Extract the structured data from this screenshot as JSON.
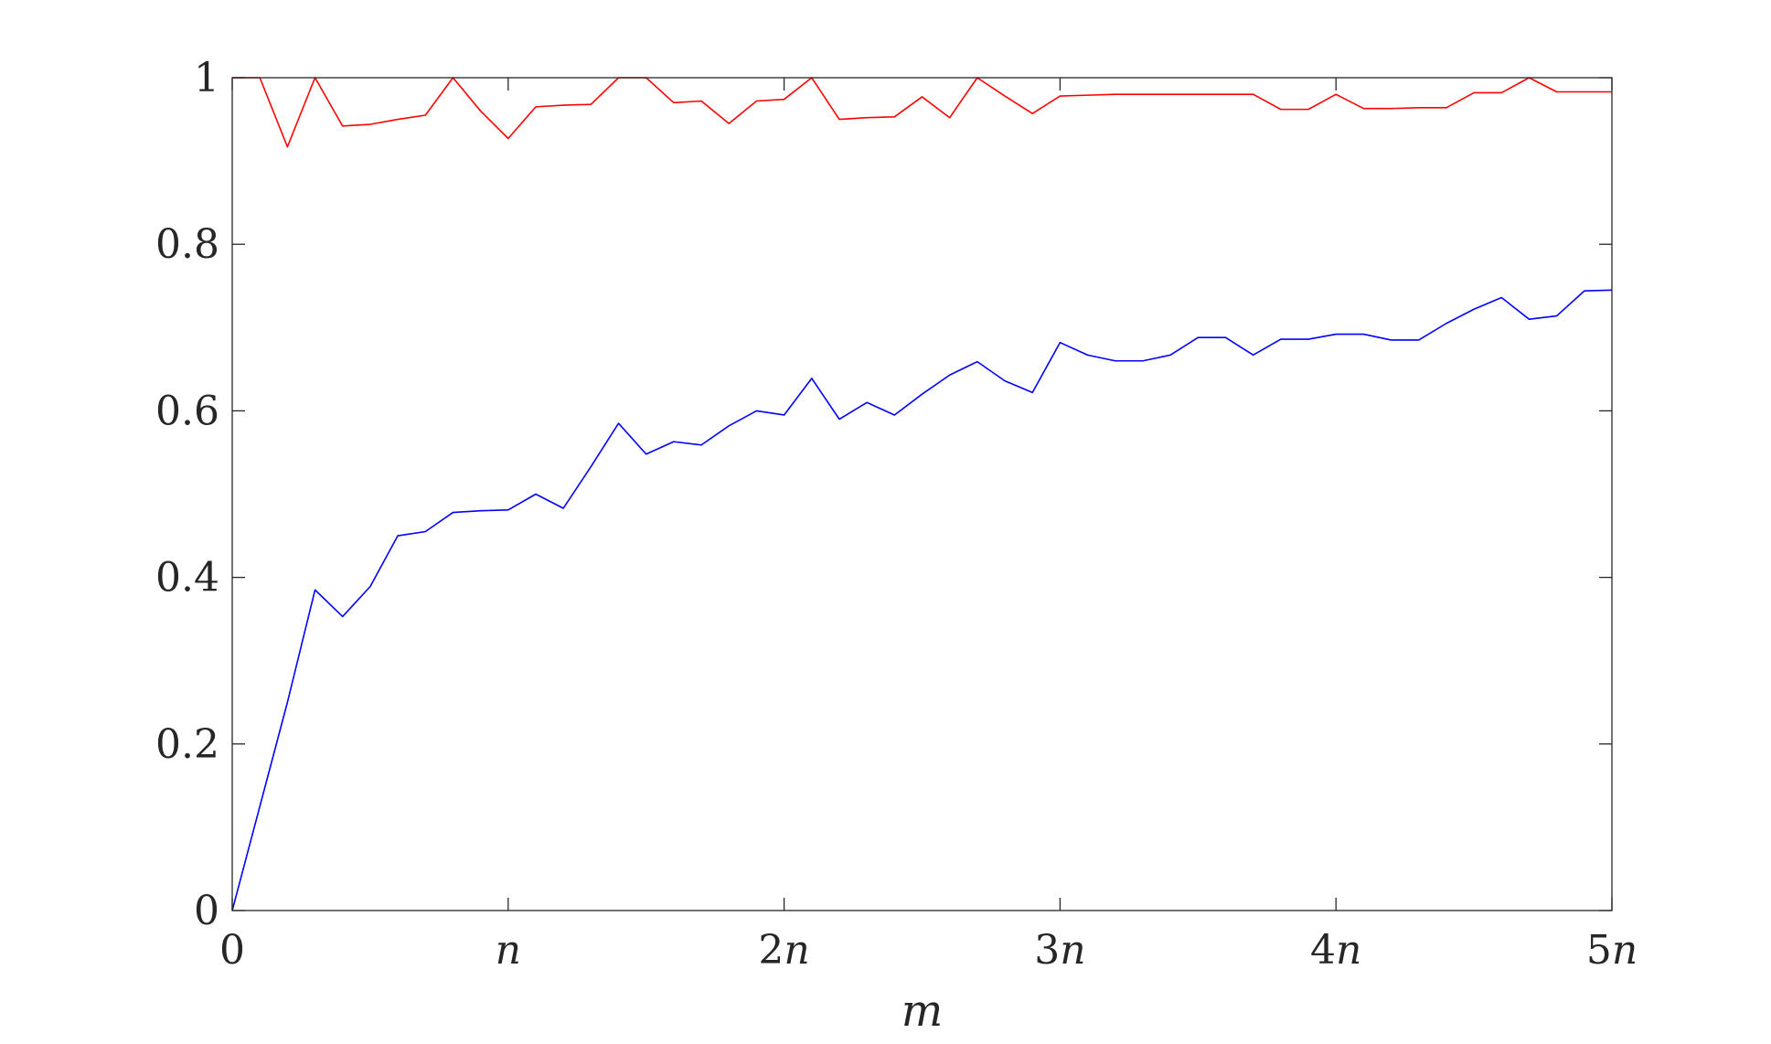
{
  "chart_data": {
    "type": "line",
    "title": "",
    "xlabel": "m",
    "ylabel": "",
    "xlim": [
      0,
      5
    ],
    "ylim": [
      0,
      1
    ],
    "x_unit": "n",
    "x_ticks": [
      {
        "value": 0,
        "label": "0"
      },
      {
        "value": 1,
        "label": "n"
      },
      {
        "value": 2,
        "label": "2n"
      },
      {
        "value": 3,
        "label": "3n"
      },
      {
        "value": 4,
        "label": "4n"
      },
      {
        "value": 5,
        "label": "5n"
      }
    ],
    "y_ticks": [
      {
        "value": 0,
        "label": "0"
      },
      {
        "value": 0.2,
        "label": "0.2"
      },
      {
        "value": 0.4,
        "label": "0.4"
      },
      {
        "value": 0.6,
        "label": "0.6"
      },
      {
        "value": 0.8,
        "label": "0.8"
      },
      {
        "value": 1,
        "label": "1"
      }
    ],
    "grid": false,
    "box": true,
    "x": [
      0,
      0.1,
      0.2,
      0.3,
      0.4,
      0.5,
      0.6,
      0.7,
      0.8,
      0.9,
      1.0,
      1.1,
      1.2,
      1.3,
      1.4,
      1.5,
      1.6,
      1.7,
      1.8,
      1.9,
      2.0,
      2.1,
      2.2,
      2.3,
      2.4,
      2.5,
      2.6,
      2.7,
      2.8,
      2.9,
      3.0,
      3.1,
      3.2,
      3.3,
      3.4,
      3.5,
      3.6,
      3.7,
      3.8,
      3.9,
      4.0,
      4.1,
      4.2,
      4.3,
      4.4,
      4.5,
      4.6,
      4.7,
      4.8,
      4.9,
      5.0
    ],
    "series": [
      {
        "color": "#ff0000",
        "values": [
          1.0,
          1.0,
          0.917,
          1.0,
          0.942,
          0.944,
          0.95,
          0.955,
          1.0,
          0.96,
          0.927,
          0.965,
          0.967,
          0.968,
          1.0,
          1.0,
          0.97,
          0.972,
          0.945,
          0.972,
          0.974,
          1.0,
          0.95,
          0.952,
          0.953,
          0.977,
          0.952,
          1.0,
          0.978,
          0.957,
          0.978,
          0.979,
          0.98,
          0.98,
          0.98,
          0.98,
          0.98,
          0.98,
          0.962,
          0.962,
          0.98,
          0.963,
          0.963,
          0.964,
          0.964,
          0.982,
          0.982,
          1.0,
          0.983,
          0.983,
          0.983
        ]
      },
      {
        "color": "#0000ff",
        "values": [
          0.0,
          0.125,
          0.25,
          0.385,
          0.353,
          0.389,
          0.45,
          0.455,
          0.478,
          0.48,
          0.481,
          0.5,
          0.483,
          0.533,
          0.585,
          0.548,
          0.563,
          0.559,
          0.582,
          0.6,
          0.595,
          0.639,
          0.59,
          0.61,
          0.595,
          0.62,
          0.643,
          0.659,
          0.636,
          0.622,
          0.682,
          0.667,
          0.66,
          0.66,
          0.667,
          0.688,
          0.688,
          0.667,
          0.686,
          0.686,
          0.692,
          0.692,
          0.685,
          0.685,
          0.705,
          0.722,
          0.736,
          0.71,
          0.714,
          0.744,
          0.745
        ]
      }
    ]
  }
}
